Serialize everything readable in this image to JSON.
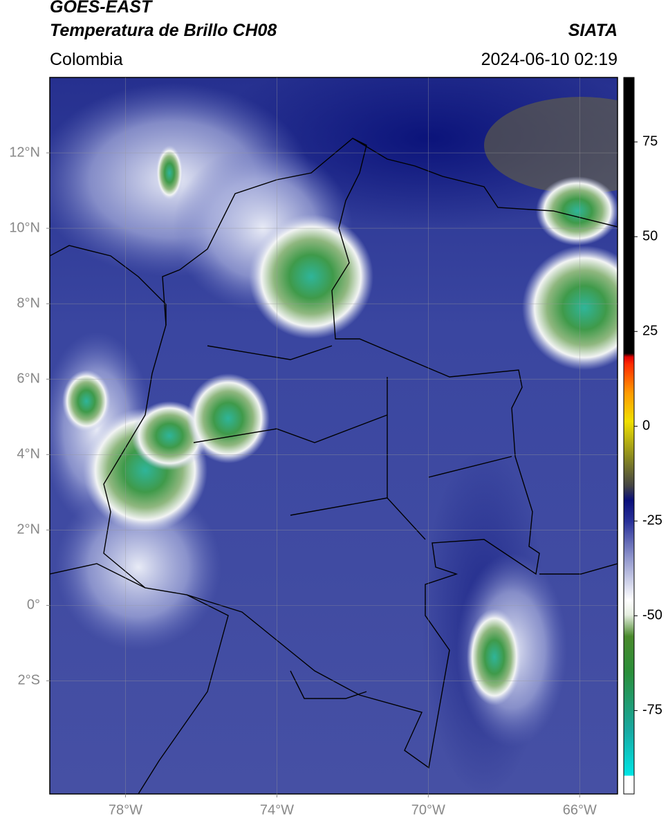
{
  "header": {
    "title": "GOES-EAST",
    "subtitle": "Temperatura de Brillo CH08",
    "region": "Colombia",
    "source": "SIATA",
    "datetime": "2024-06-10 02:19"
  },
  "map": {
    "xlim": [
      -80,
      -65
    ],
    "ylim": [
      -5,
      14
    ],
    "grid": true,
    "xticks": [
      {
        "value": -78,
        "label": "78°W"
      },
      {
        "value": -74,
        "label": "74°W"
      },
      {
        "value": -70,
        "label": "70°W"
      },
      {
        "value": -66,
        "label": "66°W"
      }
    ],
    "yticks": [
      {
        "value": 12,
        "label": "12°N"
      },
      {
        "value": 10,
        "label": "10°N"
      },
      {
        "value": 8,
        "label": "8°N"
      },
      {
        "value": 6,
        "label": "6°N"
      },
      {
        "value": 4,
        "label": "4°N"
      },
      {
        "value": 2,
        "label": "2°N"
      },
      {
        "value": 0,
        "label": "0°"
      },
      {
        "value": -2,
        "label": "2°S"
      }
    ]
  },
  "colorbar": {
    "lim": [
      -97,
      92
    ],
    "ticks": [
      75,
      50,
      25,
      0,
      -25,
      -50,
      -75
    ]
  }
}
